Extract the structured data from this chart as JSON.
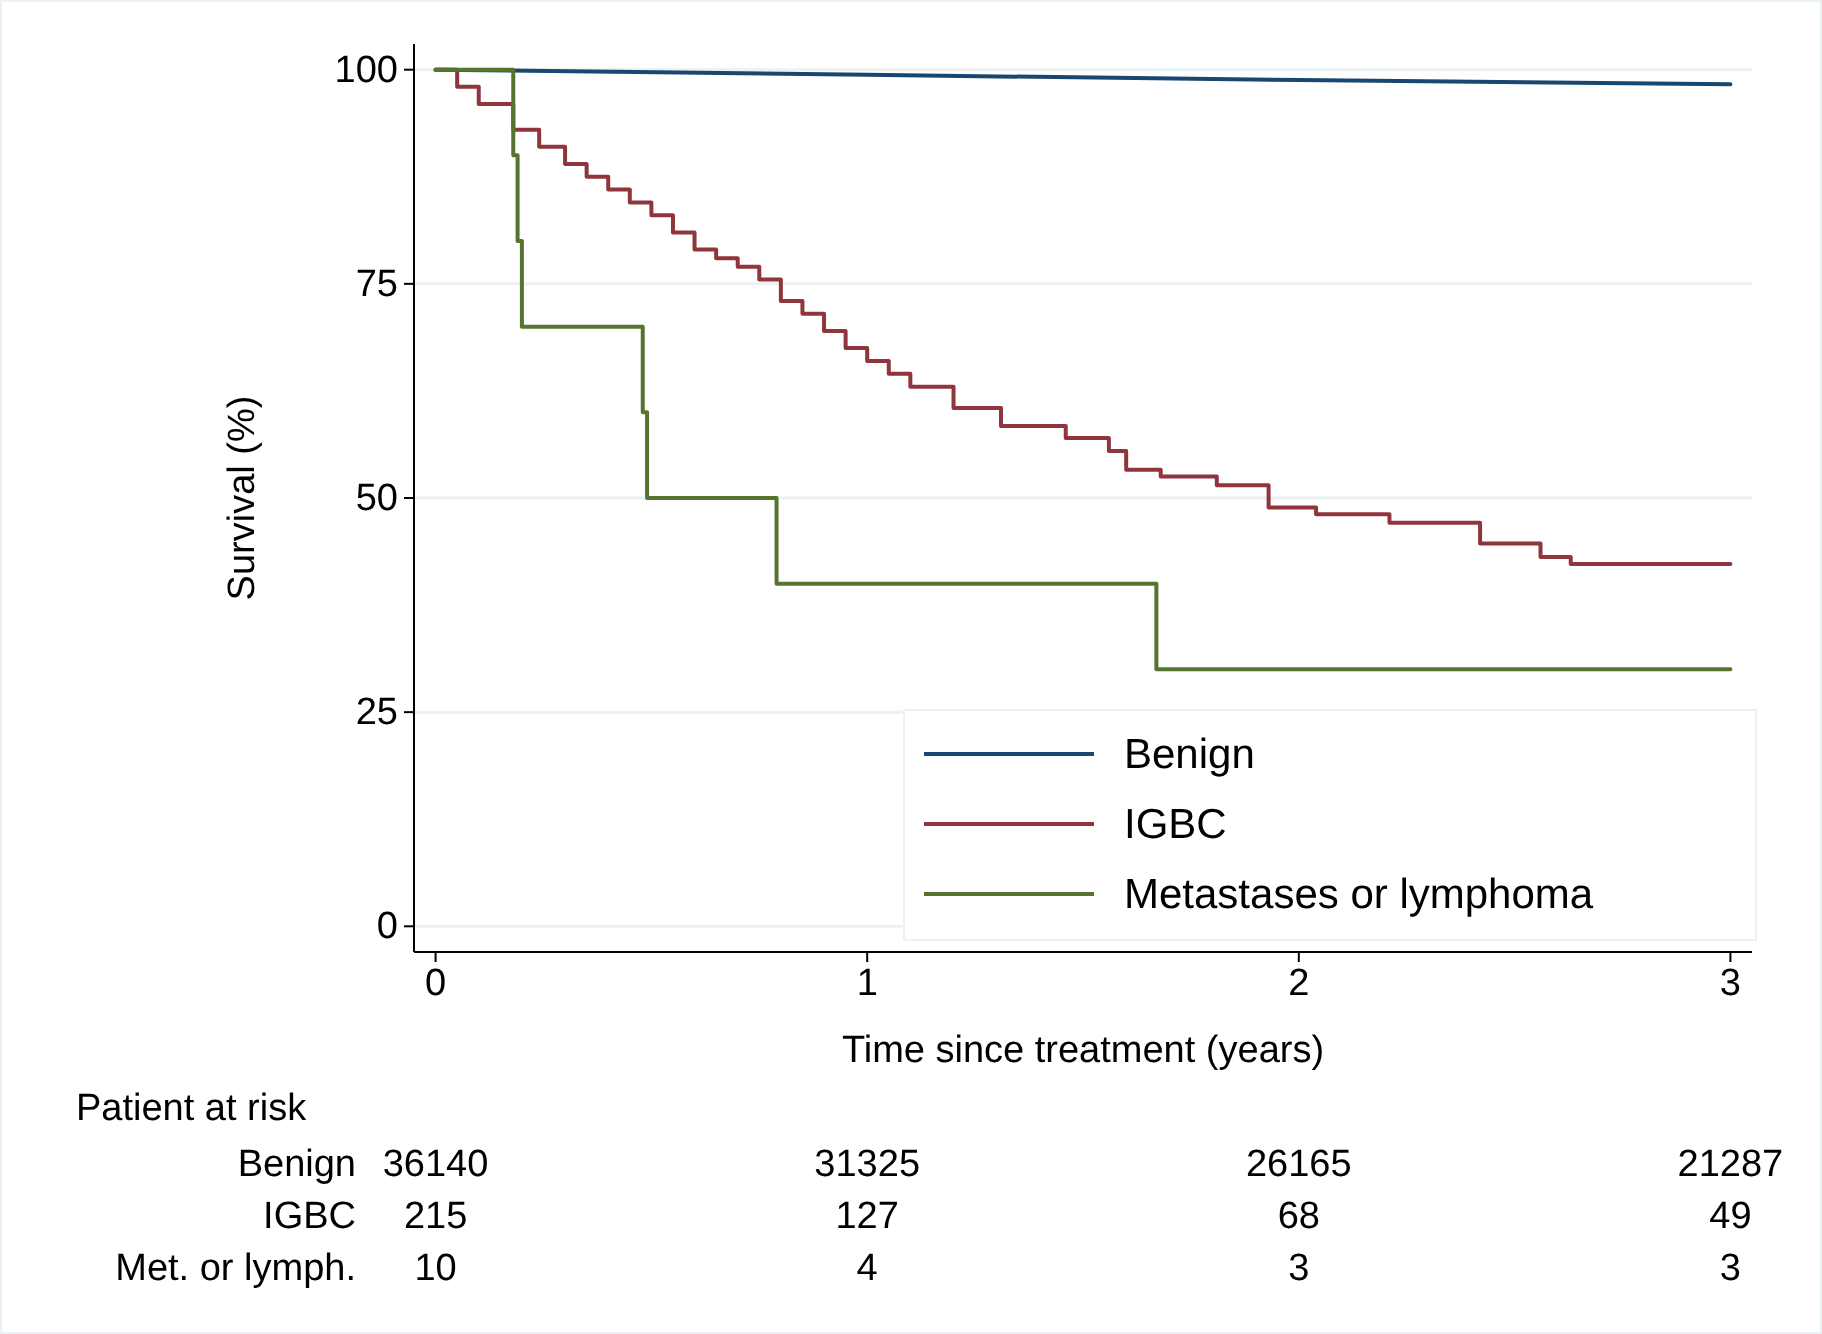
{
  "chart_data": {
    "type": "step",
    "xlabel": "Time since treatment (years)",
    "ylabel": "Survival (%)",
    "xlim": [
      -0.05,
      3.05
    ],
    "xticks": [
      0,
      1,
      2,
      3
    ],
    "ylim": [
      -3,
      103
    ],
    "yticks": [
      0,
      25,
      50,
      75,
      100
    ],
    "grid": "y",
    "legend": "bottom right",
    "series": [
      {
        "name": "Benign",
        "type": "line",
        "color": "#1a476f",
        "x": [
          0,
          1,
          2,
          3
        ],
        "values": [
          100,
          99.4,
          98.8,
          98.3
        ]
      },
      {
        "name": "IGBC",
        "color": "#90353b",
        "x": [
          0,
          0.05,
          0.1,
          0.18,
          0.24,
          0.3,
          0.35,
          0.4,
          0.45,
          0.5,
          0.55,
          0.6,
          0.65,
          0.7,
          0.75,
          0.8,
          0.85,
          0.9,
          0.95,
          1.0,
          1.05,
          1.1,
          1.2,
          1.31,
          1.46,
          1.56,
          1.6,
          1.68,
          1.81,
          1.93,
          2.04,
          2.21,
          2.42,
          2.56,
          2.63,
          3
        ],
        "values": [
          100,
          98,
          96,
          93,
          91,
          89,
          87.5,
          86,
          84.5,
          83,
          81,
          79,
          78,
          77,
          75.5,
          73,
          71.5,
          69.5,
          67.5,
          66,
          64.5,
          63,
          60.5,
          58.4,
          57,
          55.5,
          53.3,
          52.5,
          51.5,
          48.9,
          48.1,
          47.1,
          44.7,
          43.1,
          42.3,
          42.3
        ]
      },
      {
        "name": "Metastases or lymphoma",
        "color": "#55752f",
        "x": [
          0,
          0.18,
          0.19,
          0.2,
          0.48,
          0.49,
          0.79,
          1.67,
          3
        ],
        "values": [
          100,
          90,
          80,
          70,
          60,
          50,
          40,
          30,
          30
        ]
      }
    ],
    "annotations": [
      "Patient at risk",
      "Benign",
      "36140",
      "31325",
      "26165",
      "21287",
      "IGBC",
      "215",
      "127",
      "68",
      "49",
      "Met. or lymph.",
      "10",
      "4",
      "3",
      "3"
    ]
  }
}
